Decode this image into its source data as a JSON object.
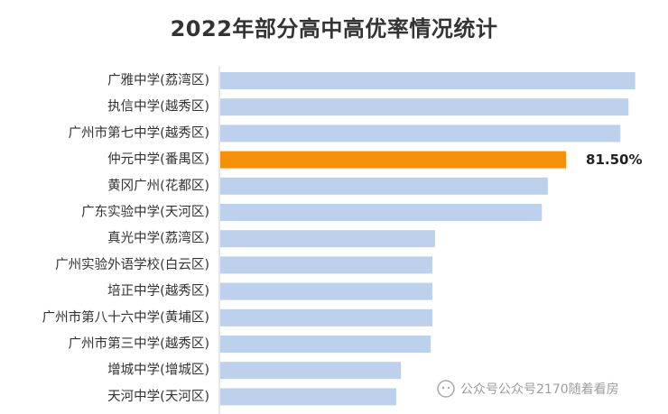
{
  "chart_data": {
    "type": "bar",
    "orientation": "horizontal",
    "title": "2022年部分高中高优率情况统计",
    "xlabel": "",
    "ylabel": "",
    "xlim": [
      0,
      100
    ],
    "grid": false,
    "legend": "none",
    "categories": [
      "广雅中学(荔湾区)",
      "执信中学(越秀区)",
      "广州市第七中学(越秀区)",
      "仲元中学(番禺区)",
      "黄冈广州(花都区)",
      "广东实验中学(天河区)",
      "真光中学(荔湾区)",
      "广州实验外语学校(白云区)",
      "培正中学(越秀区)",
      "广州市第八十六中学(黄埔区)",
      "广州市第三中学(越秀区)",
      "增城中学(增城区)",
      "天河中学(天河区)"
    ],
    "values": [
      97.8,
      96.2,
      94.3,
      81.5,
      77.2,
      75.8,
      50.6,
      50.0,
      50.0,
      50.0,
      49.6,
      42.6,
      41.5
    ],
    "highlight": {
      "category": "仲元中学(番禺区)",
      "label": "81.50%"
    },
    "colors": {
      "bar": "#bdd0ec",
      "highlight": "#f5900a",
      "label": "#222222",
      "axis": "#d0d0d0"
    }
  },
  "watermark": {
    "text": "公众号公众号2170随着看房",
    "icon": "wechat-icon"
  }
}
